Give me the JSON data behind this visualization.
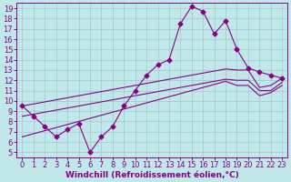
{
  "xlabel": "Windchill (Refroidissement éolien,°C)",
  "bg_color": "#c0e8e8",
  "line_color": "#880088",
  "grid_color": "#a0c8c8",
  "xlim_min": -0.5,
  "xlim_max": 23.5,
  "ylim_min": 4.5,
  "ylim_max": 19.5,
  "yticks": [
    5,
    6,
    7,
    8,
    9,
    10,
    11,
    12,
    13,
    14,
    15,
    16,
    17,
    18,
    19
  ],
  "xticks": [
    0,
    1,
    2,
    3,
    4,
    5,
    6,
    7,
    8,
    9,
    10,
    11,
    12,
    13,
    14,
    15,
    16,
    17,
    18,
    19,
    20,
    21,
    22,
    23
  ],
  "hours": [
    0,
    1,
    2,
    3,
    4,
    5,
    6,
    7,
    8,
    9,
    10,
    11,
    12,
    13,
    14,
    15,
    16,
    17,
    18,
    19,
    20,
    21,
    22,
    23
  ],
  "main_line": [
    9.5,
    8.5,
    7.5,
    6.5,
    7.2,
    7.8,
    5.0,
    6.5,
    7.5,
    9.5,
    11.0,
    12.5,
    13.5,
    14.0,
    17.5,
    19.2,
    18.7,
    16.5,
    17.8,
    15.0,
    13.2,
    12.8,
    12.5,
    12.2
  ],
  "diag_upper": [
    9.5,
    9.7,
    9.9,
    10.1,
    10.3,
    10.5,
    10.7,
    10.9,
    11.1,
    11.3,
    11.5,
    11.7,
    11.9,
    12.1,
    12.3,
    12.5,
    12.7,
    12.9,
    13.1,
    13.0,
    13.0,
    11.3,
    11.5,
    12.2
  ],
  "diag_mid": [
    8.5,
    8.7,
    8.9,
    9.1,
    9.3,
    9.5,
    9.7,
    9.9,
    10.1,
    10.3,
    10.5,
    10.7,
    10.9,
    11.1,
    11.3,
    11.5,
    11.7,
    11.9,
    12.1,
    12.0,
    12.0,
    11.0,
    11.0,
    11.8
  ],
  "diag_lower": [
    6.5,
    6.8,
    7.1,
    7.4,
    7.7,
    8.0,
    8.3,
    8.6,
    8.9,
    9.2,
    9.5,
    9.8,
    10.1,
    10.4,
    10.7,
    11.0,
    11.3,
    11.6,
    11.9,
    11.5,
    11.5,
    10.5,
    10.8,
    11.5
  ],
  "tick_fontsize": 6,
  "xlabel_fontsize": 6.5,
  "marker": "D",
  "marker_size": 2.5,
  "linewidth": 0.8
}
